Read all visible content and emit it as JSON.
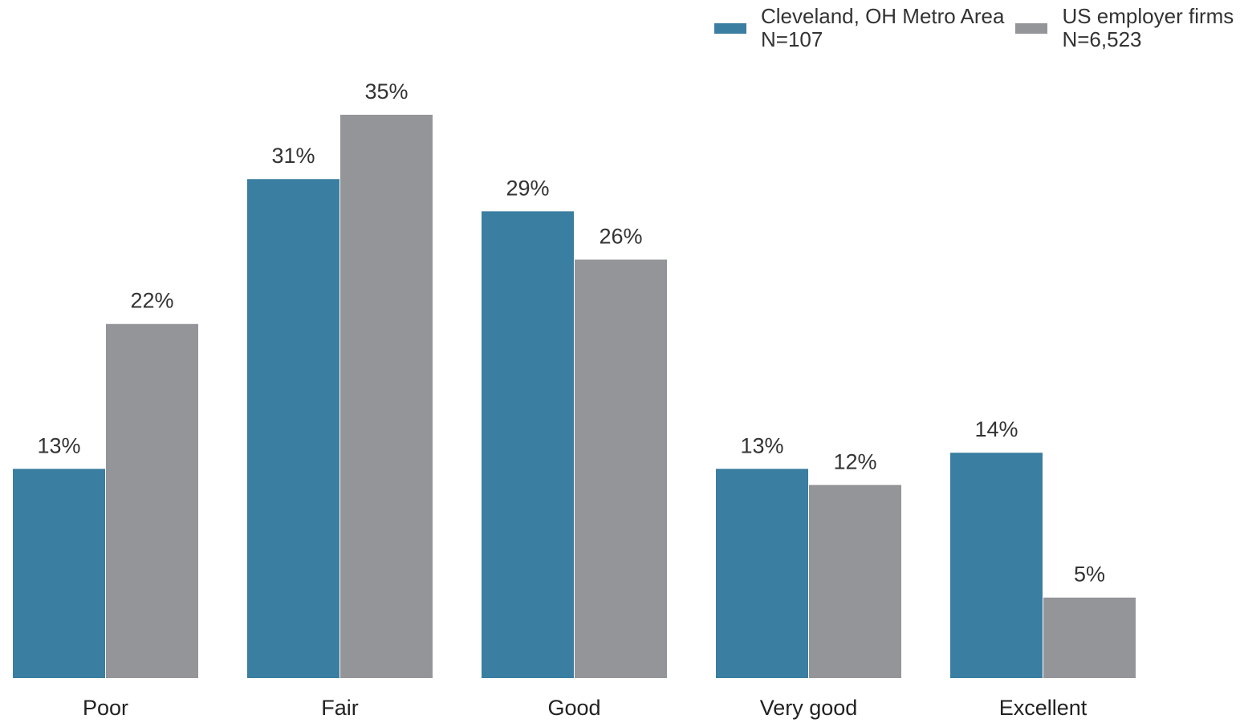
{
  "chart_data": {
    "type": "bar",
    "categories": [
      "Poor",
      "Fair",
      "Good",
      "Very good",
      "Excellent"
    ],
    "series": [
      {
        "name": "Cleveland, OH Metro Area",
        "sample": "N=107",
        "color": "#3a7ea1",
        "values": [
          13,
          31,
          29,
          13,
          14
        ],
        "labels": [
          "13%",
          "31%",
          "29%",
          "13%",
          "14%"
        ]
      },
      {
        "name": "US employer firms",
        "sample": "N=6,523",
        "color": "#949599",
        "values": [
          22,
          35,
          26,
          12,
          5
        ],
        "labels": [
          "22%",
          "35%",
          "26%",
          "12%",
          "5%"
        ]
      }
    ],
    "title": "",
    "xlabel": "",
    "ylabel": "",
    "ylim": [
      0,
      35
    ],
    "grid": false,
    "legend_position": "top-right"
  }
}
